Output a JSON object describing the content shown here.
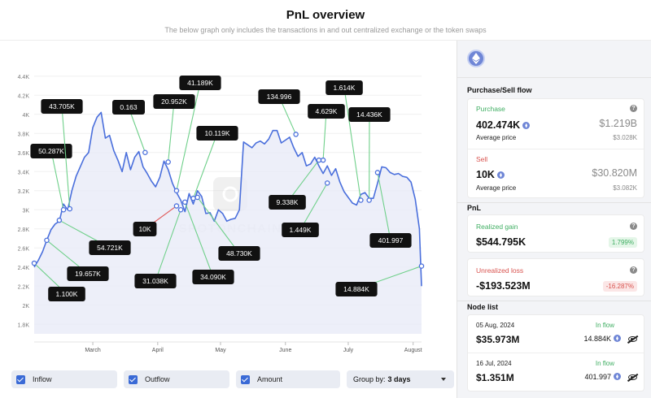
{
  "header": {
    "title": "PnL overview",
    "subtitle": "The below graph only includes the transactions in and out centralized exchange or the token swaps"
  },
  "chart_data": {
    "type": "line",
    "title": "",
    "xlabel": "",
    "ylabel": "",
    "ylim": [
      1700,
      4500
    ],
    "y_ticks": [
      "1.8K",
      "2K",
      "2.2K",
      "2.4K",
      "2.6K",
      "2.8K",
      "3K",
      "3.2K",
      "3.4K",
      "3.6K",
      "3.8K",
      "4K",
      "4.2K",
      "4.4K"
    ],
    "x_ticks": [
      "March",
      "April",
      "May",
      "June",
      "July",
      "August"
    ],
    "x_tick_days": [
      28,
      59,
      89,
      120,
      150,
      181
    ],
    "grid": "horizontal",
    "watermark": "SPOTONCHAIN",
    "line_color": "#4a6fdc",
    "fill_color": "#e8ebf8",
    "series": [
      {
        "days": [
          0,
          2,
          4,
          6,
          8,
          10,
          12,
          14,
          16,
          18,
          20,
          22,
          24,
          26,
          28,
          30,
          32,
          34,
          36,
          38,
          40,
          42,
          44,
          46,
          48,
          50,
          52,
          54,
          56,
          58,
          60,
          62,
          64,
          66,
          68,
          70,
          72,
          74,
          76,
          78,
          80,
          82,
          84,
          86,
          88,
          90,
          92,
          94,
          96,
          98,
          100,
          102,
          104,
          106,
          108,
          110,
          112,
          114,
          116,
          118,
          120,
          122,
          124,
          126,
          128,
          130,
          132,
          134,
          136,
          138,
          140,
          142,
          144,
          146,
          148,
          150,
          152,
          154,
          156,
          158,
          160,
          162,
          164,
          166,
          168,
          170,
          172,
          174,
          176,
          178,
          180,
          182,
          184,
          185
        ],
        "values": [
          2400,
          2470,
          2560,
          2680,
          2790,
          2850,
          2880,
          3060,
          3000,
          3200,
          3350,
          3450,
          3550,
          3600,
          3860,
          3970,
          4020,
          3750,
          3780,
          3620,
          3520,
          3400,
          3600,
          3420,
          3550,
          3610,
          3450,
          3380,
          3300,
          3240,
          3340,
          3510,
          3420,
          3280,
          3180,
          3100,
          2980,
          3170,
          3060,
          3200,
          3140,
          2960,
          2970,
          2880,
          3000,
          2960,
          2880,
          2900,
          2910,
          3000,
          3710,
          3680,
          3650,
          3700,
          3720,
          3690,
          3740,
          3830,
          3830,
          3700,
          3730,
          3760,
          3650,
          3560,
          3600,
          3460,
          3480,
          3550,
          3460,
          3380,
          3460,
          3360,
          3430,
          3290,
          3190,
          3130,
          3070,
          3050,
          3160,
          3180,
          3120,
          3120,
          3280,
          3450,
          3440,
          3390,
          3370,
          3380,
          3350,
          3340,
          3290,
          3110,
          2800,
          2200
        ]
      }
    ],
    "markers": [
      {
        "label": "1.100K",
        "day": 0,
        "value": 2440
      },
      {
        "label": "19.657K",
        "day": 6,
        "value": 2680
      },
      {
        "label": "50.287K",
        "day": 14,
        "value": 3000
      },
      {
        "label": "43.705K",
        "day": 17,
        "value": 3010
      },
      {
        "label": "54.721K",
        "day": 12,
        "value": 2890
      },
      {
        "label": "0.163",
        "day": 53,
        "value": 3600
      },
      {
        "label": "20.952K",
        "day": 64,
        "value": 3500
      },
      {
        "label": "41.189K",
        "day": 68,
        "value": 3200
      },
      {
        "label": "10K",
        "day": 68,
        "value": 3040
      },
      {
        "label": "31.038K",
        "day": 70,
        "value": 3000
      },
      {
        "label": "34.090K",
        "day": 72,
        "value": 3080
      },
      {
        "label": "10.119K",
        "day": 76,
        "value": 3120
      },
      {
        "label": "48.730K",
        "day": 78,
        "value": 3130
      },
      {
        "label": "134.996",
        "day": 125,
        "value": 3790
      },
      {
        "label": "9.338K",
        "day": 136,
        "value": 3520
      },
      {
        "label": "4.629K",
        "day": 138,
        "value": 3520
      },
      {
        "label": "1.449K",
        "day": 140,
        "value": 3280
      },
      {
        "label": "1.614K",
        "day": 156,
        "value": 3100
      },
      {
        "label": "14.436K",
        "day": 160,
        "value": 3100
      },
      {
        "label": "401.997",
        "day": 164,
        "value": 3390
      },
      {
        "label": "14.884K",
        "day": 185,
        "value": 2410
      }
    ],
    "outflow_marker": "10K"
  },
  "controls": {
    "inflow": "Inflow",
    "outflow": "Outflow",
    "amount": "Amount",
    "group_by_label": "Group by:",
    "group_by_value": "3 days"
  },
  "side": {
    "purchase_sell_title": "Purchase/Sell flow",
    "purchase": {
      "label": "Purchase",
      "amount": "402.474K",
      "usd": "$1.219B",
      "avg_label": "Average price",
      "avg_value": "$3.028K"
    },
    "sell": {
      "label": "Sell",
      "amount": "10K",
      "usd": "$30.820M",
      "avg_label": "Average price",
      "avg_value": "$3.082K"
    },
    "pnl_title": "PnL",
    "realized": {
      "label": "Realized gain",
      "value": "$544.795K",
      "pct": "1.799%"
    },
    "unrealized": {
      "label": "Unrealized loss",
      "value": "-$193.523M",
      "pct": "-16.287%"
    },
    "node_title": "Node list",
    "nodes": [
      {
        "date": "05 Aug, 2024",
        "flow": "In flow",
        "usd": "$35.973M",
        "eth": "14.884K"
      },
      {
        "date": "16 Jul, 2024",
        "flow": "In flow",
        "usd": "$1.351M",
        "eth": "401.997"
      }
    ],
    "colors": {
      "accent": "#4a6fdc",
      "green": "#3fae62",
      "red": "#d9534f"
    }
  }
}
